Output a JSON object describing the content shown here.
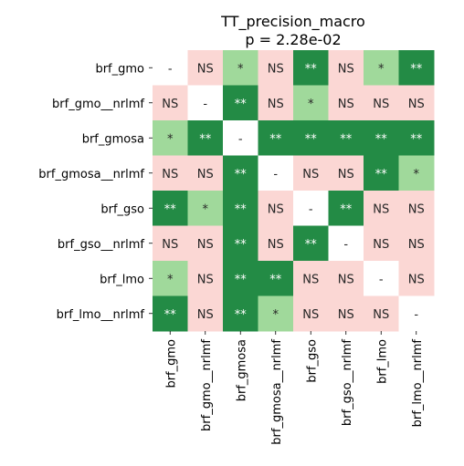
{
  "chart_data": {
    "type": "heatmap",
    "title": "TT_precision_macro",
    "subtitle": "p = 2.28e-02",
    "rows": [
      "brf_gmo",
      "brf_gmo__nrlmf",
      "brf_gmosa",
      "brf_gmosa__nrlmf",
      "brf_gso",
      "brf_gso__nrlmf",
      "brf_lmo",
      "brf_lmo__nrlmf"
    ],
    "columns": [
      "brf_gmo",
      "brf_gmo__nrlmf",
      "brf_gmosa",
      "brf_gmosa__nrlmf",
      "brf_gso",
      "brf_gso__nrlmf",
      "brf_lmo",
      "brf_lmo__nrlmf"
    ],
    "cells": [
      [
        "-",
        "NS",
        "*",
        "NS",
        "**",
        "NS",
        "*",
        "**"
      ],
      [
        "NS",
        "-",
        "**",
        "NS",
        "*",
        "NS",
        "NS",
        "NS"
      ],
      [
        "*",
        "**",
        "-",
        "**",
        "**",
        "**",
        "**",
        "**"
      ],
      [
        "NS",
        "NS",
        "**",
        "-",
        "NS",
        "NS",
        "**",
        "*"
      ],
      [
        "**",
        "*",
        "**",
        "NS",
        "-",
        "**",
        "NS",
        "NS"
      ],
      [
        "NS",
        "NS",
        "**",
        "NS",
        "**",
        "-",
        "NS",
        "NS"
      ],
      [
        "*",
        "NS",
        "**",
        "**",
        "NS",
        "NS",
        "-",
        "NS"
      ],
      [
        "**",
        "NS",
        "**",
        "*",
        "NS",
        "NS",
        "NS",
        "-"
      ]
    ],
    "colors": {
      "-": "#ffffff",
      "NS": "#fbd7d4",
      "*": "#a0d99b",
      "**": "#238b45"
    },
    "legend": false
  }
}
